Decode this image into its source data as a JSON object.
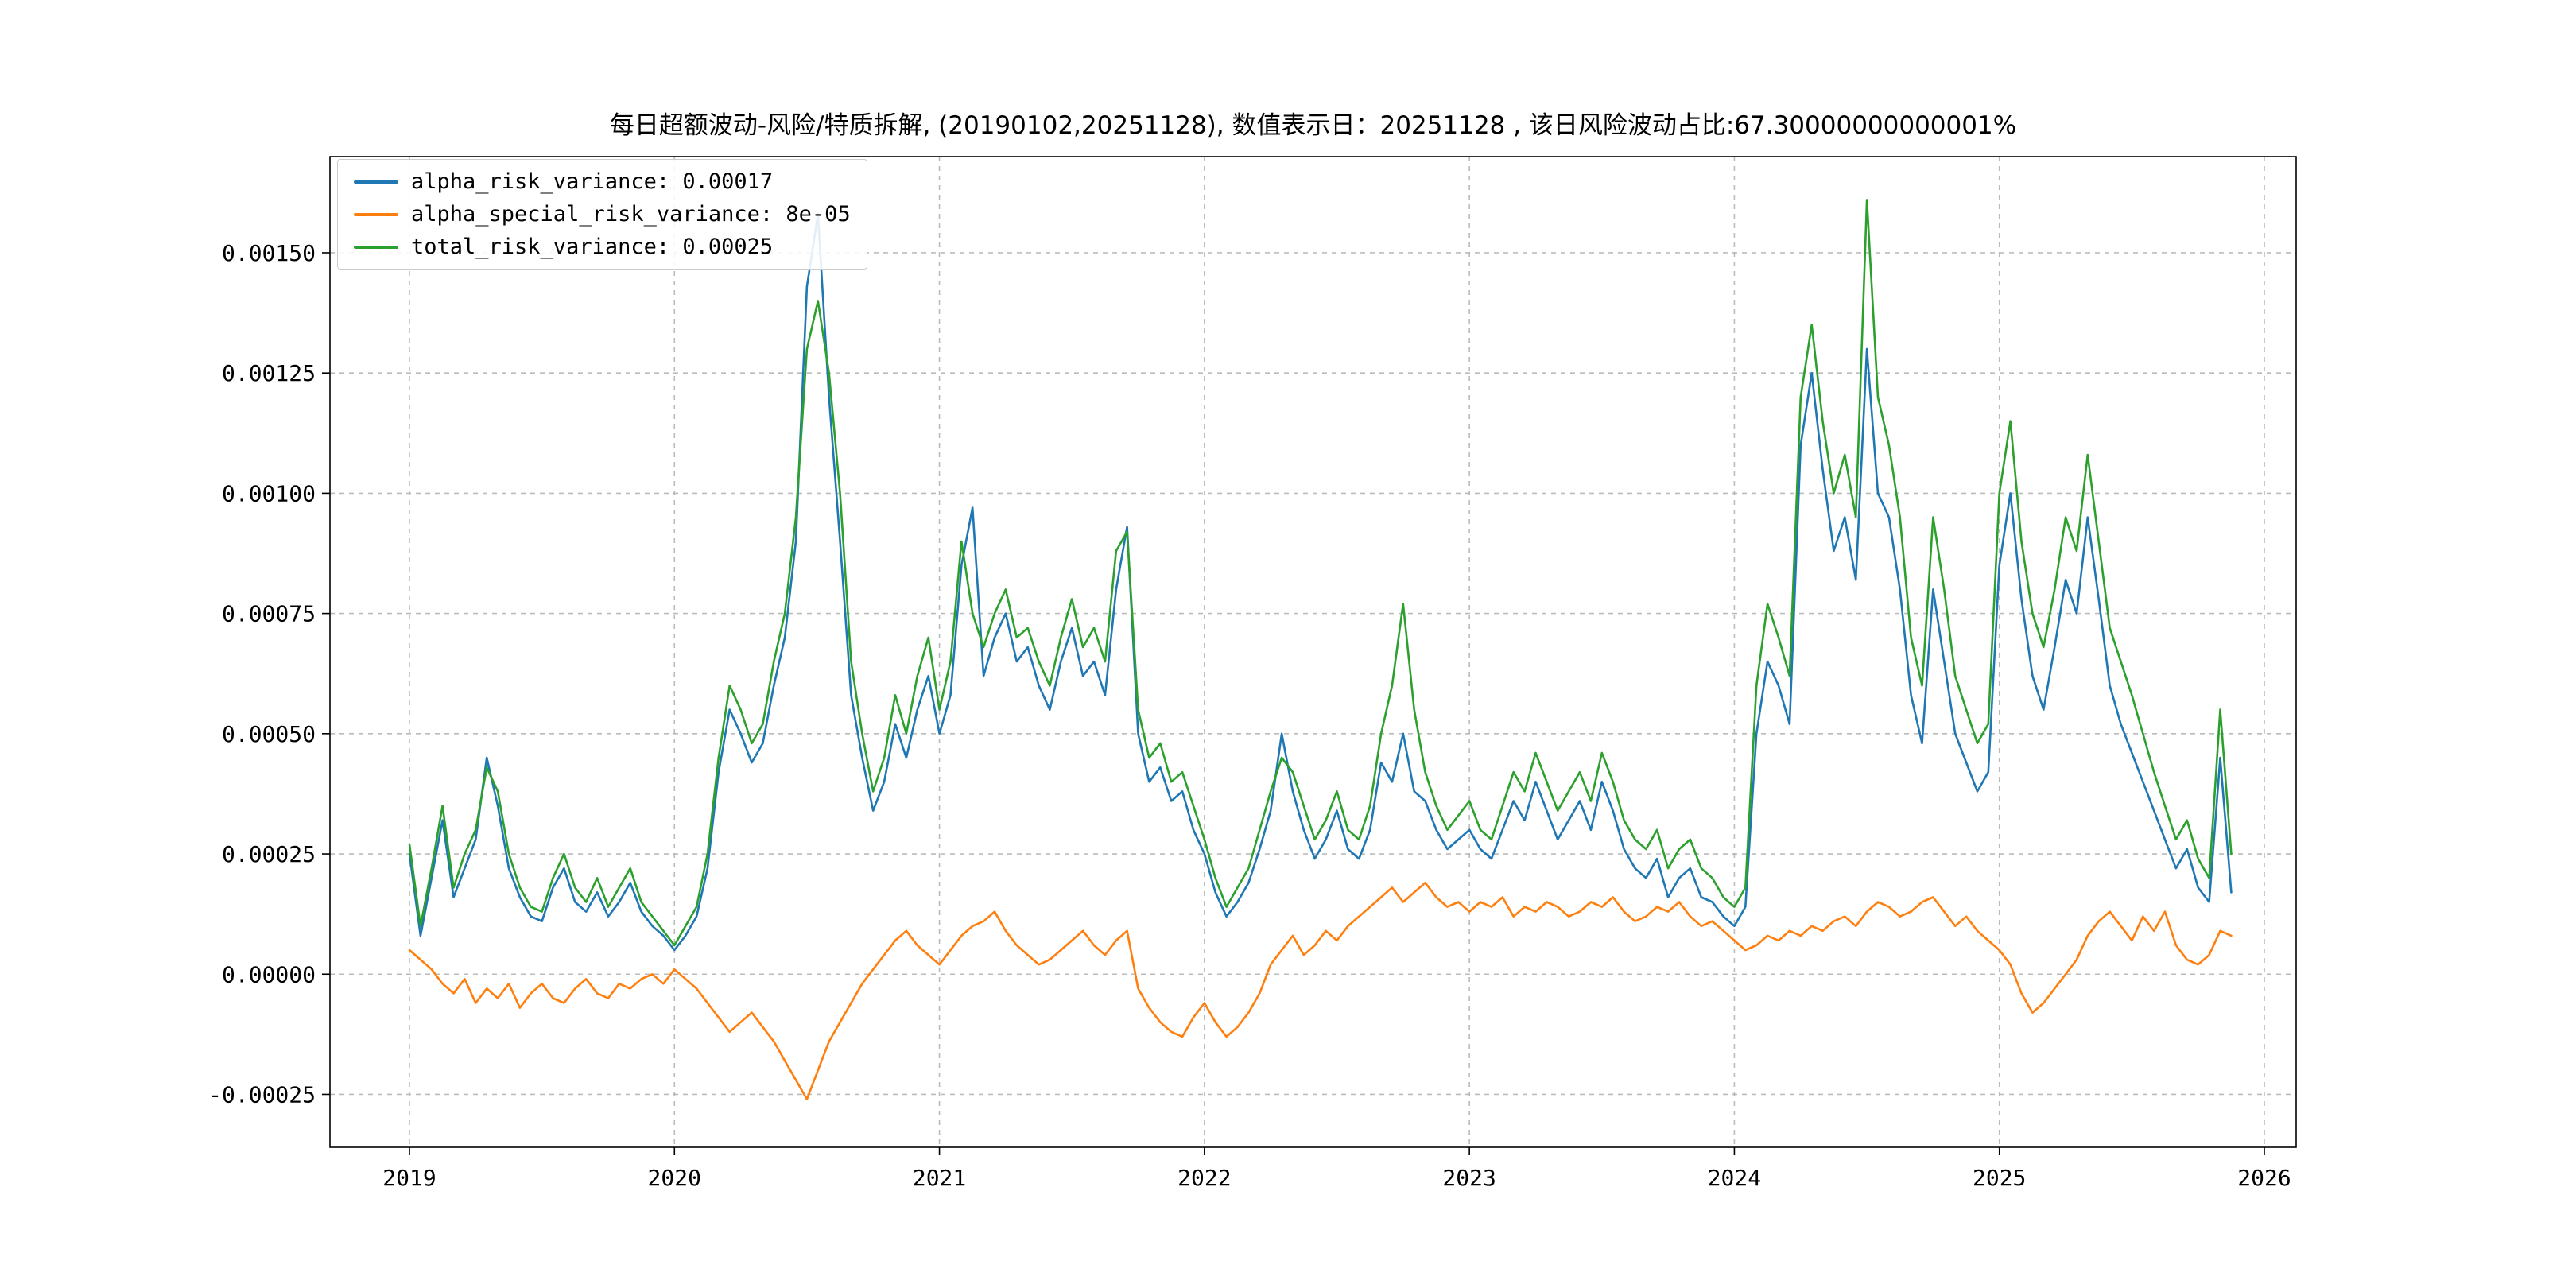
{
  "figure": {
    "background": "#ffffff"
  },
  "chart_data": {
    "type": "line",
    "title": "每日超额波动-风险/特质拆解, (20190102,20251128),  数值表示日：20251128 , 该日风险波动占比:67.30000000000001%",
    "xlabel": "",
    "ylabel": "",
    "date_range": [
      "20190102",
      "20251128"
    ],
    "value_date": "20251128",
    "risk_ratio_text": "67.30000000000001%",
    "xlim": [
      2018.7,
      2026.12
    ],
    "ylim": [
      -0.00036,
      0.0017
    ],
    "xticks": [
      2019,
      2020,
      2021,
      2022,
      2023,
      2024,
      2025,
      2026
    ],
    "yticks": [
      -0.00025,
      0.0,
      0.00025,
      0.0005,
      0.00075,
      0.001,
      0.00125,
      0.0015
    ],
    "ytick_labels": [
      "-0.00025",
      "0.00000",
      "0.00025",
      "0.00050",
      "0.00075",
      "0.00100",
      "0.00125",
      "0.00150"
    ],
    "grid": {
      "on": true,
      "style": "dashed",
      "color": "#b0b0b0"
    },
    "legend_position": "upper-left",
    "x_start": 2019.0,
    "x_step_years": 0.041667,
    "n_points": 166,
    "value_scale": 1e-05,
    "series": [
      {
        "name": "alpha_risk_variance",
        "legend_label": "alpha_risk_variance: 0.00017",
        "last_value": 0.00017,
        "color": "#1f77b4",
        "values_e5": [
          25,
          8,
          20,
          32,
          16,
          22,
          28,
          45,
          35,
          22,
          16,
          12,
          11,
          18,
          22,
          15,
          13,
          17,
          12,
          15,
          19,
          13,
          10,
          8,
          5,
          8,
          12,
          22,
          42,
          55,
          50,
          44,
          48,
          60,
          70,
          90,
          143,
          158,
          120,
          90,
          58,
          45,
          34,
          40,
          52,
          45,
          55,
          62,
          50,
          58,
          85,
          97,
          62,
          70,
          75,
          65,
          68,
          60,
          55,
          65,
          72,
          62,
          65,
          58,
          80,
          93,
          50,
          40,
          43,
          36,
          38,
          30,
          25,
          17,
          12,
          15,
          19,
          26,
          34,
          50,
          38,
          30,
          24,
          28,
          34,
          26,
          24,
          30,
          44,
          40,
          50,
          38,
          36,
          30,
          26,
          28,
          30,
          26,
          24,
          30,
          36,
          32,
          40,
          34,
          28,
          32,
          36,
          30,
          40,
          34,
          26,
          22,
          20,
          24,
          16,
          20,
          22,
          16,
          15,
          12,
          10,
          14,
          50,
          65,
          60,
          52,
          110,
          125,
          105,
          88,
          95,
          82,
          130,
          100,
          95,
          80,
          58,
          48,
          80,
          65,
          50,
          44,
          38,
          42,
          85,
          100,
          78,
          62,
          55,
          68,
          82,
          75,
          95,
          78,
          60,
          52,
          46,
          40,
          34,
          28,
          22,
          26,
          18,
          15,
          45,
          17
        ]
      },
      {
        "name": "alpha_special_risk_variance",
        "legend_label": "alpha_special_risk_variance: 8e-05",
        "last_value": 8e-05,
        "color": "#ff7f0e",
        "values_e5": [
          5,
          3,
          1,
          -2,
          -4,
          -1,
          -6,
          -3,
          -5,
          -2,
          -7,
          -4,
          -2,
          -5,
          -6,
          -3,
          -1,
          -4,
          -5,
          -2,
          -3,
          -1,
          0,
          -2,
          1,
          -1,
          -3,
          -6,
          -9,
          -12,
          -10,
          -8,
          -11,
          -14,
          -18,
          -22,
          -26,
          -20,
          -14,
          -10,
          -6,
          -2,
          1,
          4,
          7,
          9,
          6,
          4,
          2,
          5,
          8,
          10,
          11,
          13,
          9,
          6,
          4,
          2,
          3,
          5,
          7,
          9,
          6,
          4,
          7,
          9,
          -3,
          -7,
          -10,
          -12,
          -13,
          -9,
          -6,
          -10,
          -13,
          -11,
          -8,
          -4,
          2,
          5,
          8,
          4,
          6,
          9,
          7,
          10,
          12,
          14,
          16,
          18,
          15,
          17,
          19,
          16,
          14,
          15,
          13,
          15,
          14,
          16,
          12,
          14,
          13,
          15,
          14,
          12,
          13,
          15,
          14,
          16,
          13,
          11,
          12,
          14,
          13,
          15,
          12,
          10,
          11,
          9,
          7,
          5,
          6,
          8,
          7,
          9,
          8,
          10,
          9,
          11,
          12,
          10,
          13,
          15,
          14,
          12,
          13,
          15,
          16,
          13,
          10,
          12,
          9,
          7,
          5,
          2,
          -4,
          -8,
          -6,
          -3,
          0,
          3,
          8,
          11,
          13,
          10,
          7,
          12,
          9,
          13,
          6,
          3,
          2,
          4,
          9,
          8
        ]
      },
      {
        "name": "total_risk_variance",
        "legend_label": "total_risk_variance: 0.00025",
        "last_value": 0.00025,
        "color": "#2ca02c",
        "values_e5": [
          27,
          10,
          22,
          35,
          18,
          25,
          30,
          43,
          38,
          25,
          18,
          14,
          13,
          20,
          25,
          18,
          15,
          20,
          14,
          18,
          22,
          15,
          12,
          9,
          6,
          10,
          14,
          25,
          45,
          60,
          55,
          48,
          52,
          65,
          75,
          95,
          130,
          140,
          125,
          100,
          65,
          50,
          38,
          45,
          58,
          50,
          62,
          70,
          55,
          65,
          90,
          75,
          68,
          75,
          80,
          70,
          72,
          65,
          60,
          70,
          78,
          68,
          72,
          65,
          88,
          92,
          55,
          45,
          48,
          40,
          42,
          35,
          28,
          20,
          14,
          18,
          22,
          30,
          38,
          45,
          42,
          35,
          28,
          32,
          38,
          30,
          28,
          35,
          50,
          60,
          77,
          55,
          42,
          35,
          30,
          33,
          36,
          30,
          28,
          35,
          42,
          38,
          46,
          40,
          34,
          38,
          42,
          36,
          46,
          40,
          32,
          28,
          26,
          30,
          22,
          26,
          28,
          22,
          20,
          16,
          14,
          18,
          60,
          77,
          70,
          62,
          120,
          135,
          115,
          100,
          108,
          95,
          161,
          120,
          110,
          95,
          70,
          60,
          95,
          80,
          62,
          55,
          48,
          52,
          100,
          115,
          90,
          75,
          68,
          80,
          95,
          88,
          108,
          90,
          72,
          65,
          58,
          50,
          42,
          35,
          28,
          32,
          24,
          20,
          55,
          25
        ]
      }
    ]
  }
}
